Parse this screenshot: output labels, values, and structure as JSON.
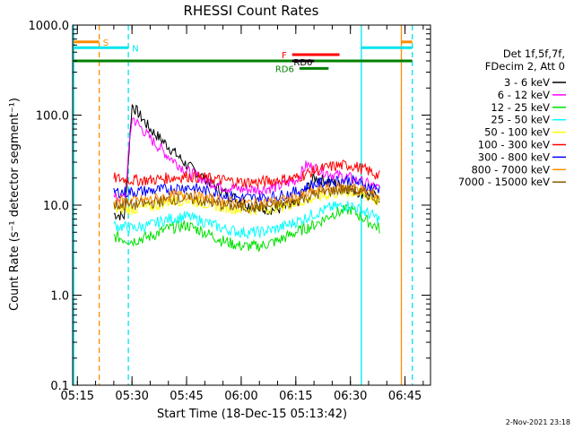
{
  "chart_data": {
    "type": "line",
    "title": "RHESSI Count Rates",
    "xlabel": "Start Time (18-Dec-15 05:13:42)",
    "ylabel": "Count Rate (s⁻¹ detector segment⁻¹)",
    "yscale": "log",
    "ylim": [
      0.1,
      1000
    ],
    "xlim": [
      "05:13:42",
      "06:52"
    ],
    "x_ticks": [
      "05:15",
      "05:30",
      "05:45",
      "06:00",
      "06:15",
      "06:30",
      "06:45"
    ],
    "y_ticks": [
      "0.1",
      "1.0",
      "10.0",
      "100.0",
      "1000.0"
    ],
    "grid": false,
    "legend_position": "right",
    "legend_header": [
      "Det 1f,5f,7f,",
      "FDecim 2, Att 0"
    ],
    "series": [
      {
        "name": "3 - 6 keV",
        "color": "#000000",
        "x": [
          "05:25",
          "05:28",
          "05:30",
          "05:35",
          "05:40",
          "05:45",
          "05:50",
          "05:55",
          "06:00",
          "06:05",
          "06:10",
          "06:15",
          "06:18",
          "06:20",
          "06:25",
          "06:30",
          "06:35",
          "06:38"
        ],
        "values": [
          8,
          7.5,
          130,
          70,
          45,
          28,
          20,
          14,
          11,
          9,
          9,
          10,
          15,
          20,
          18,
          15,
          13,
          12
        ]
      },
      {
        "name": "6 - 12 keV",
        "color": "#ff00ff",
        "x": [
          "05:25",
          "05:28",
          "05:30",
          "05:35",
          "05:40",
          "05:45",
          "05:50",
          "05:55",
          "06:00",
          "06:05",
          "06:10",
          "06:15",
          "06:18",
          "06:20",
          "06:25",
          "06:30",
          "06:35",
          "06:38"
        ],
        "values": [
          12,
          12,
          95,
          55,
          35,
          24,
          19,
          16,
          15,
          15,
          16,
          19,
          28,
          26,
          22,
          20,
          17,
          15
        ]
      },
      {
        "name": "12 - 25 keV",
        "color": "#00e000",
        "x": [
          "05:25",
          "05:30",
          "05:35",
          "05:40",
          "05:45",
          "05:50",
          "05:55",
          "06:00",
          "06:05",
          "06:10",
          "06:15",
          "06:20",
          "06:25",
          "06:30",
          "06:35",
          "06:38"
        ],
        "values": [
          4.5,
          4,
          4.5,
          5.5,
          6,
          5,
          4,
          3.5,
          3.5,
          4,
          5,
          6,
          8,
          9,
          6.5,
          5.5
        ]
      },
      {
        "name": "25 - 50 keV",
        "color": "#00ffff",
        "x": [
          "05:25",
          "05:30",
          "05:35",
          "05:40",
          "05:45",
          "05:50",
          "05:55",
          "06:00",
          "06:05",
          "06:10",
          "06:15",
          "06:20",
          "06:25",
          "06:30",
          "06:35",
          "06:38"
        ],
        "values": [
          6,
          5.5,
          6,
          7,
          7.5,
          6.5,
          5.5,
          5,
          5,
          5.5,
          6.5,
          8,
          9.5,
          10,
          8,
          7
        ]
      },
      {
        "name": "50 - 100 keV",
        "color": "#ffff00",
        "x": [
          "05:25",
          "05:30",
          "05:35",
          "05:40",
          "05:45",
          "05:50",
          "05:55",
          "06:00",
          "06:05",
          "06:10",
          "06:15",
          "06:20",
          "06:25",
          "06:30",
          "06:35",
          "06:38"
        ],
        "values": [
          9,
          9,
          9.5,
          11,
          11.5,
          10.5,
          9.5,
          9,
          9,
          9.5,
          10.5,
          12,
          13.5,
          14,
          12.5,
          11
        ]
      },
      {
        "name": "100 - 300 keV",
        "color": "#ff0000",
        "x": [
          "05:25",
          "05:30",
          "05:35",
          "05:40",
          "05:45",
          "05:50",
          "05:55",
          "06:00",
          "06:05",
          "06:10",
          "06:15",
          "06:20",
          "06:25",
          "06:30",
          "06:35",
          "06:38"
        ],
        "values": [
          20,
          19,
          19,
          20,
          21,
          20,
          19,
          18,
          18,
          19,
          20,
          24,
          27,
          28,
          24,
          21
        ]
      },
      {
        "name": "300 - 800 keV",
        "color": "#0000ff",
        "x": [
          "05:25",
          "05:30",
          "05:35",
          "05:40",
          "05:45",
          "05:50",
          "05:55",
          "06:00",
          "06:05",
          "06:10",
          "06:15",
          "06:20",
          "06:25",
          "06:30",
          "06:35",
          "06:38"
        ],
        "values": [
          14,
          14,
          14.5,
          15,
          16,
          14.5,
          13,
          12,
          12,
          12.5,
          14,
          17,
          18.5,
          19,
          16,
          15
        ]
      },
      {
        "name": "800 - 7000 keV",
        "color": "#ff8c00",
        "x": [
          "05:25",
          "05:30",
          "05:35",
          "05:40",
          "05:45",
          "05:50",
          "05:55",
          "06:00",
          "06:05",
          "06:10",
          "06:15",
          "06:20",
          "06:25",
          "06:30",
          "06:35",
          "06:38"
        ],
        "values": [
          11,
          11,
          11.5,
          12.5,
          13,
          12,
          11,
          10.5,
          10.5,
          11,
          12,
          14,
          15.5,
          16,
          14,
          12.5
        ]
      },
      {
        "name": "7000 - 15000 keV",
        "color": "#8b5a00",
        "x": [
          "05:25",
          "05:30",
          "05:35",
          "05:40",
          "05:45",
          "05:50",
          "05:55",
          "06:00",
          "06:05",
          "06:10",
          "06:15",
          "06:20",
          "06:25",
          "06:30",
          "06:35",
          "06:38"
        ],
        "values": [
          10,
          10,
          10.5,
          11.5,
          12,
          11,
          10,
          9.5,
          9.5,
          10,
          11,
          13,
          14.5,
          15,
          13,
          11.5
        ]
      }
    ],
    "vertical_markers": [
      {
        "time": "05:14",
        "color": "#00e5ee",
        "style": "solid"
      },
      {
        "time": "05:21",
        "color": "#ff8c00",
        "style": "dashed"
      },
      {
        "time": "05:29",
        "color": "#00e5ee",
        "style": "dashed"
      },
      {
        "time": "06:33",
        "color": "#00e5ee",
        "style": "solid"
      },
      {
        "time": "06:44",
        "color": "#ff8c00",
        "style": "solid"
      },
      {
        "time": "06:47",
        "color": "#00e5ee",
        "style": "dashed"
      }
    ],
    "flag_bars": [
      {
        "label": "S",
        "color": "#ff8c00",
        "y": 650,
        "segments": [
          [
            "05:14",
            "05:21"
          ],
          [
            "06:44",
            "06:47"
          ]
        ],
        "label_at": "05:22"
      },
      {
        "label": "N",
        "color": "#00e5ee",
        "y": 560,
        "segments": [
          [
            "05:14",
            "05:29"
          ],
          [
            "06:33",
            "06:47"
          ]
        ],
        "label_at": "05:30"
      },
      {
        "label": "",
        "color": "#008000",
        "y": 400,
        "segments": [
          [
            "05:14",
            "06:47"
          ]
        ],
        "label_at": ""
      },
      {
        "label": "F",
        "color": "#ff0000",
        "y": 470,
        "segments": [
          [
            "06:14",
            "06:27"
          ]
        ],
        "label_at": "06:12",
        "label_side": "left"
      },
      {
        "label": "RD0",
        "color": "#000000",
        "y": 400,
        "segments": [
          [
            "06:14",
            "06:20"
          ]
        ],
        "label_at": "06:17",
        "label_side": "below"
      },
      {
        "label": "RD6",
        "color": "#008000",
        "y": 330,
        "segments": [
          [
            "06:16",
            "06:24"
          ]
        ],
        "label_at": "06:14",
        "label_side": "left"
      }
    ]
  },
  "footer": {
    "timestamp": "2-Nov-2021 23:18"
  }
}
